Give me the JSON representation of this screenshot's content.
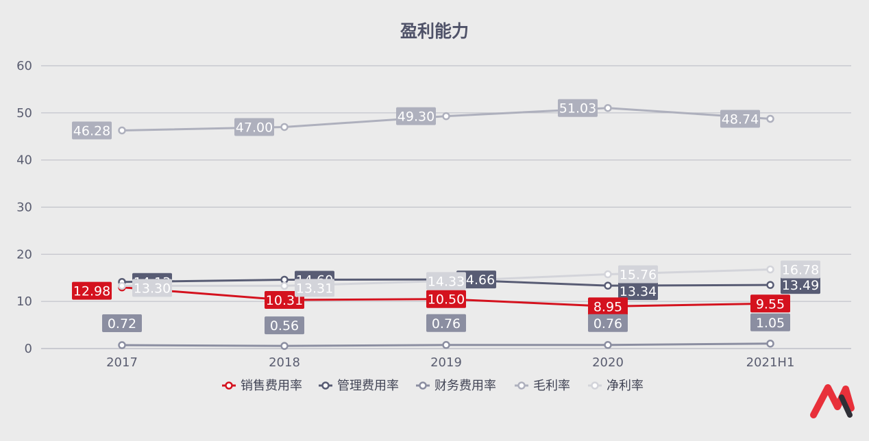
{
  "chart_data": {
    "type": "line",
    "title": "盈利能力",
    "categories": [
      "2017",
      "2018",
      "2019",
      "2020",
      "2021H1"
    ],
    "ylim": [
      0,
      60
    ],
    "yticks": [
      0,
      10,
      20,
      30,
      40,
      50,
      60
    ],
    "grid": true,
    "legend_position": "bottom",
    "series": [
      {
        "name": "销售费用率",
        "color": "#d4121e",
        "values": [
          12.98,
          10.31,
          10.5,
          8.95,
          9.55
        ],
        "labels": [
          "12.98",
          "10.31",
          "10.50",
          "8.95",
          "9.55"
        ]
      },
      {
        "name": "管理费用率",
        "color": "#585c74",
        "values": [
          14.13,
          14.6,
          14.66,
          13.34,
          13.49
        ],
        "labels": [
          "14.13",
          "14.60",
          "14.66",
          "13.34",
          "13.49"
        ]
      },
      {
        "name": "财务费用率",
        "color": "#8b8ea1",
        "values": [
          0.72,
          0.56,
          0.76,
          0.76,
          1.05
        ],
        "labels": [
          "0.72",
          "0.56",
          "0.76",
          "0.76",
          "1.05"
        ]
      },
      {
        "name": "毛利率",
        "color": "#aeb0bd",
        "values": [
          46.28,
          47.0,
          49.3,
          51.03,
          48.74
        ],
        "labels": [
          "46.28",
          "47.00",
          "49.30",
          "51.03",
          "48.74"
        ]
      },
      {
        "name": "净利率",
        "color": "#d3d4da",
        "values": [
          13.3,
          13.31,
          14.33,
          15.76,
          16.78
        ],
        "labels": [
          "13.30",
          "13.31",
          "14.33",
          "15.76",
          "16.78"
        ]
      }
    ]
  },
  "logo": {
    "name": "logo-mark",
    "colors": [
      "#e8303a",
      "#2f2f36"
    ]
  }
}
